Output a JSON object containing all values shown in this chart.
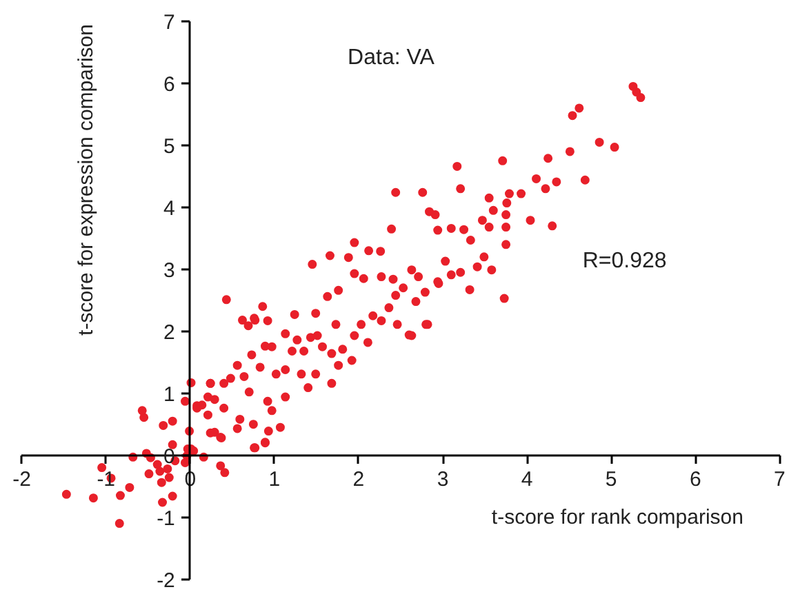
{
  "chart_data": {
    "type": "scatter",
    "xlabel": "t-score for rank comparison",
    "ylabel": "t-score for expression comparison",
    "annotations": [
      "Data: VA",
      "R=0.928"
    ],
    "xlim": [
      -2,
      7
    ],
    "ylim": [
      -2,
      7
    ],
    "xticks": [
      -2,
      -1,
      0,
      1,
      2,
      3,
      4,
      5,
      6,
      7
    ],
    "yticks": [
      -2,
      -1,
      0,
      1,
      2,
      3,
      4,
      5,
      6,
      7
    ],
    "grid": false,
    "marker": "circle",
    "series": [
      {
        "color": "#e8202a",
        "x": [
          -1.47,
          -1.15,
          -0.83,
          -0.84,
          -1.05,
          -0.94,
          -0.72,
          -0.57,
          -0.55,
          -0.32,
          -0.21,
          -0.21,
          -0.68,
          -0.52,
          -0.47,
          -0.39,
          -0.49,
          -0.36,
          -0.27,
          -0.34,
          -0.25,
          -0.33,
          -0.21,
          -0.18,
          -0.06,
          -0.04,
          -0.03,
          -0.01,
          0.01,
          -0.06,
          0.01,
          0.04,
          0.16,
          0.36,
          0.41,
          0.08,
          0.14,
          0.24,
          0.21,
          0.29,
          0.4,
          0.24,
          0.29,
          0.36,
          0.76,
          0.89,
          0.93,
          0.62,
          0.77,
          2.44,
          2.76,
          2.84,
          2.91,
          2.39,
          1.95,
          1.45,
          1.66,
          2.12,
          2.26,
          1.88,
          0.43,
          0.86,
          0.69,
          0.76,
          0.92,
          1.13,
          1.24,
          1.49,
          1.63,
          1.76,
          1.95,
          2.06,
          2.27,
          2.41,
          2.53,
          2.63,
          2.79,
          2.68,
          2.27,
          2.46,
          2.63,
          2.82,
          2.11,
          1.95,
          1.73,
          1.51,
          1.43,
          1.35,
          1.21,
          0.97,
          0.89,
          0.73,
          0.83,
          1.02,
          1.13,
          1.49,
          1.4,
          1.68,
          1.76,
          1.92,
          1.68,
          0.56,
          0.48,
          0.64,
          0.7,
          0.92,
          1.13,
          0.97,
          0.24,
          0.21,
          0.4,
          0.59,
          0.75,
          0.56,
          0.37,
          0.89,
          1.07,
          0.77,
          0.08,
          1.32,
          1.27,
          1.57,
          1.81,
          2.03,
          2.17,
          2.36,
          2.44,
          2.71,
          3.03,
          2.95,
          5.26,
          5.3,
          5.35,
          4.62,
          4.54,
          4.86,
          5.04,
          4.51,
          4.25,
          3.71,
          3.17,
          4.11,
          4.22,
          4.35,
          4.69,
          3.21,
          3.79,
          3.93,
          3.55,
          3.76,
          3.75,
          3.6,
          4.04,
          4.3,
          3.75,
          3.47,
          3.55,
          3.25,
          3.1,
          2.94,
          3.33,
          3.75,
          3.49,
          3.58,
          3.41,
          3.21,
          3.1,
          3.32,
          3.73,
          2.94,
          2.8,
          2.6
        ],
        "values": [
          -0.63,
          -0.69,
          -0.65,
          -1.1,
          -0.2,
          -0.37,
          -0.52,
          0.72,
          0.61,
          0.48,
          0.55,
          0.17,
          -0.03,
          0.03,
          -0.04,
          -0.15,
          -0.3,
          -0.26,
          -0.22,
          -0.44,
          -0.36,
          -0.76,
          -0.66,
          -0.09,
          -0.12,
          -0.01,
          0.1,
          0.39,
          1.17,
          0.87,
          0.1,
          0.07,
          -0.03,
          -0.17,
          -0.28,
          0.76,
          0.81,
          1.16,
          0.94,
          0.9,
          1.16,
          0.36,
          0.37,
          0.29,
          0.12,
          0.2,
          0.39,
          2.18,
          2.18,
          4.24,
          4.24,
          3.93,
          3.88,
          3.65,
          3.43,
          3.08,
          3.22,
          3.3,
          3.29,
          3.19,
          2.51,
          2.4,
          2.09,
          2.21,
          2.17,
          1.96,
          2.27,
          2.29,
          2.56,
          2.66,
          2.93,
          2.85,
          2.88,
          2.84,
          2.7,
          2.99,
          2.63,
          2.48,
          2.17,
          2.11,
          1.93,
          2.11,
          1.82,
          1.93,
          2.11,
          1.93,
          1.9,
          1.68,
          1.68,
          1.75,
          1.76,
          1.62,
          1.42,
          1.31,
          1.38,
          1.31,
          1.09,
          1.16,
          1.45,
          1.53,
          1.64,
          1.45,
          1.24,
          1.27,
          1.02,
          0.87,
          0.94,
          0.72,
          1.16,
          0.65,
          0.76,
          0.58,
          0.5,
          0.43,
          0.28,
          0.21,
          0.45,
          0.12,
          0.8,
          1.31,
          1.86,
          1.75,
          1.71,
          2.11,
          2.25,
          2.38,
          2.58,
          2.88,
          3.13,
          2.77,
          5.95,
          5.86,
          5.77,
          5.6,
          5.48,
          5.05,
          4.97,
          4.9,
          4.79,
          4.75,
          4.66,
          4.46,
          4.3,
          4.41,
          4.44,
          4.3,
          4.22,
          4.22,
          4.15,
          4.07,
          3.88,
          3.95,
          3.79,
          3.7,
          3.68,
          3.79,
          3.68,
          3.64,
          3.66,
          3.63,
          3.47,
          3.4,
          3.2,
          2.99,
          3.04,
          2.95,
          2.91,
          2.67,
          2.53,
          2.8,
          2.11,
          1.94
        ]
      }
    ]
  }
}
